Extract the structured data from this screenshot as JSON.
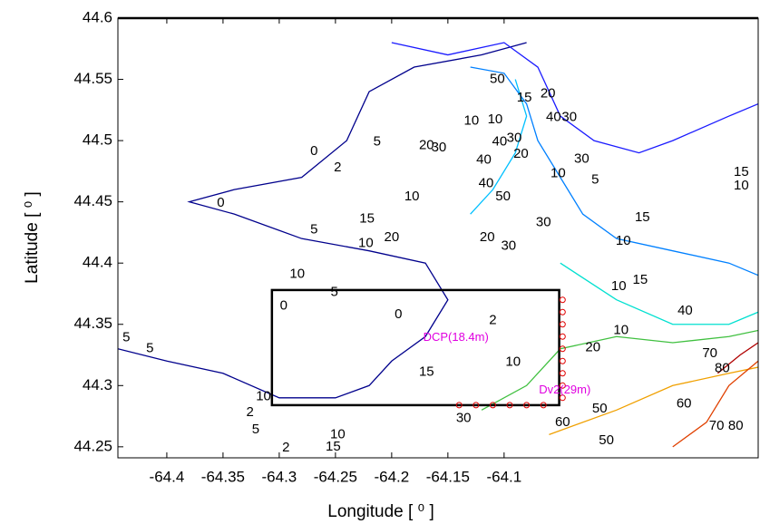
{
  "chart_data": {
    "type": "contour",
    "xlabel": "Longitude [ ⁰ ]",
    "ylabel": "Latitude [ ⁰ ]",
    "xlim": [
      -64.4435,
      -63.874
    ],
    "ylim": [
      44.241,
      44.6
    ],
    "xticks": [
      -64.4,
      -64.35,
      -64.3,
      -64.25,
      -64.2,
      -64.15,
      -64.1
    ],
    "yticks": [
      44.25,
      44.3,
      44.35,
      44.4,
      44.45,
      44.5,
      44.55,
      44.6
    ],
    "colormap": {
      "levels": [
        5,
        10,
        20,
        30,
        40,
        50,
        60,
        70,
        80
      ],
      "colors": [
        "#00008c",
        "#1a1aff",
        "#0080ff",
        "#00c0ff",
        "#00e0d0",
        "#40c040",
        "#f0a000",
        "#e04000",
        "#b00000"
      ]
    },
    "contours": [
      {
        "level": 5,
        "x": [
          -64.4435,
          -64.4,
          -64.35,
          -64.3,
          -64.25,
          -64.22,
          -64.2,
          -64.17,
          -64.15,
          -64.17,
          -64.22,
          -64.28,
          -64.34,
          -64.38,
          -64.34,
          -64.28,
          -64.24,
          -64.22,
          -64.18,
          -64.12,
          -64.08
        ],
        "y": [
          44.33,
          44.32,
          44.31,
          44.29,
          44.29,
          44.3,
          44.32,
          44.34,
          44.37,
          44.4,
          44.41,
          44.42,
          44.44,
          44.45,
          44.46,
          44.47,
          44.5,
          44.54,
          44.56,
          44.57,
          44.58
        ]
      },
      {
        "level": 10,
        "x": [
          -64.2,
          -64.15,
          -64.1,
          -64.07,
          -64.05,
          -64.02,
          -63.98,
          -63.95,
          -63.9,
          -63.874
        ],
        "y": [
          44.58,
          44.57,
          44.58,
          44.56,
          44.52,
          44.5,
          44.49,
          44.5,
          44.52,
          44.53
        ]
      },
      {
        "level": 20,
        "x": [
          -64.13,
          -64.1,
          -64.08,
          -64.07,
          -64.05,
          -64.03,
          -64.0,
          -63.95,
          -63.9,
          -63.874
        ],
        "y": [
          44.56,
          44.555,
          44.53,
          44.5,
          44.47,
          44.44,
          44.42,
          44.41,
          44.4,
          44.39
        ]
      },
      {
        "level": 30,
        "x": [
          -64.13,
          -64.11,
          -64.09,
          -64.08,
          -64.09
        ],
        "y": [
          44.44,
          44.46,
          44.49,
          44.52,
          44.55
        ]
      },
      {
        "level": 40,
        "x": [
          -64.05,
          -64.0,
          -63.95,
          -63.9,
          -63.874
        ],
        "y": [
          44.4,
          44.37,
          44.35,
          44.35,
          44.36
        ]
      },
      {
        "level": 50,
        "x": [
          -64.12,
          -64.08,
          -64.05,
          -64.0,
          -63.95,
          -63.9,
          -63.874
        ],
        "y": [
          44.28,
          44.3,
          44.33,
          44.34,
          44.335,
          44.34,
          44.345
        ]
      },
      {
        "level": 60,
        "x": [
          -64.06,
          -64.0,
          -63.95,
          -63.9,
          -63.874
        ],
        "y": [
          44.26,
          44.28,
          44.3,
          44.31,
          44.315
        ]
      },
      {
        "level": 70,
        "x": [
          -63.95,
          -63.92,
          -63.9,
          -63.874
        ],
        "y": [
          44.25,
          44.27,
          44.3,
          44.32
        ]
      },
      {
        "level": 80,
        "x": [
          -63.91,
          -63.89,
          -63.874
        ],
        "y": [
          44.31,
          44.325,
          44.335
        ]
      }
    ],
    "contour_labels": [
      [
        -64.106,
        44.55,
        50
      ],
      [
        -64.061,
        44.538,
        20
      ],
      [
        -64.082,
        44.535,
        15
      ],
      [
        -64.108,
        44.517,
        10
      ],
      [
        -64.056,
        44.519,
        40
      ],
      [
        -64.042,
        44.519,
        30
      ],
      [
        -64.104,
        44.499,
        40
      ],
      [
        -64.091,
        44.502,
        30
      ],
      [
        -64.085,
        44.489,
        20
      ],
      [
        -64.118,
        44.484,
        40
      ],
      [
        -64.031,
        44.485,
        30
      ],
      [
        -64.052,
        44.473,
        10
      ],
      [
        -64.019,
        44.468,
        5
      ],
      [
        -64.116,
        44.465,
        40
      ],
      [
        -64.101,
        44.454,
        50
      ],
      [
        -63.977,
        44.437,
        15
      ],
      [
        -64.065,
        44.433,
        30
      ],
      [
        -64.115,
        44.421,
        20
      ],
      [
        -64.096,
        44.414,
        30
      ],
      [
        -63.994,
        44.418,
        10
      ],
      [
        -63.979,
        44.386,
        15
      ],
      [
        -63.998,
        44.381,
        10
      ],
      [
        -63.939,
        44.361,
        40
      ],
      [
        -63.996,
        44.345,
        10
      ],
      [
        -64.021,
        44.331,
        20
      ],
      [
        -63.917,
        44.326,
        70
      ],
      [
        -63.906,
        44.314,
        80
      ],
      [
        -64.092,
        44.319,
        10
      ],
      [
        -63.94,
        44.285,
        60
      ],
      [
        -64.015,
        44.281,
        50
      ],
      [
        -64.048,
        44.27,
        60
      ],
      [
        -64.009,
        44.255,
        50
      ],
      [
        -63.911,
        44.267,
        70
      ],
      [
        -63.894,
        44.267,
        80
      ],
      [
        -64.136,
        44.273,
        30
      ],
      [
        -64.248,
        44.478,
        2
      ],
      [
        -64.213,
        44.499,
        5
      ],
      [
        -64.182,
        44.454,
        10
      ],
      [
        -64.269,
        44.491,
        0
      ],
      [
        -64.352,
        44.449,
        0
      ],
      [
        -64.222,
        44.436,
        15
      ],
      [
        -64.2,
        44.421,
        20
      ],
      [
        -64.223,
        44.416,
        10
      ],
      [
        -64.269,
        44.427,
        5
      ],
      [
        -64.284,
        44.391,
        10
      ],
      [
        -64.251,
        44.376,
        5
      ],
      [
        -64.194,
        44.358,
        0
      ],
      [
        -64.296,
        44.365,
        0
      ],
      [
        -64.11,
        44.353,
        2
      ],
      [
        -64.436,
        44.339,
        5
      ],
      [
        -64.415,
        44.33,
        5
      ],
      [
        -64.314,
        44.291,
        10
      ],
      [
        -64.326,
        44.278,
        2
      ],
      [
        -64.252,
        44.25,
        15
      ],
      [
        -64.248,
        44.26,
        10
      ],
      [
        -64.321,
        44.264,
        5
      ],
      [
        -64.294,
        44.249,
        2
      ],
      [
        -64.169,
        44.311,
        15
      ],
      [
        -64.158,
        44.494,
        30
      ],
      [
        -64.169,
        44.496,
        20
      ],
      [
        -63.889,
        44.474,
        15
      ],
      [
        -63.889,
        44.463,
        10
      ],
      [
        -64.129,
        44.516,
        10
      ]
    ],
    "box": {
      "x": [
        -64.3065,
        -64.051
      ],
      "y": [
        44.284,
        44.378
      ]
    },
    "stations": {
      "color": "#e00000",
      "x": [
        -64.048,
        -64.048,
        -64.048,
        -64.048,
        -64.048,
        -64.048,
        -64.048,
        -64.048,
        -64.048,
        -64.14,
        -64.125,
        -64.11,
        -64.095,
        -64.08,
        -64.065
      ],
      "y": [
        44.37,
        44.36,
        44.35,
        44.34,
        44.33,
        44.32,
        44.31,
        44.3,
        44.29,
        44.284,
        44.284,
        44.284,
        44.284,
        44.284,
        44.284
      ]
    },
    "annotations": [
      {
        "text": "DCP(18.4m)",
        "x": -64.172,
        "y": 44.339,
        "color": "#e000e0"
      },
      {
        "text": "Dv2(29m)",
        "x": -64.069,
        "y": 44.296,
        "color": "#e000e0"
      }
    ]
  }
}
